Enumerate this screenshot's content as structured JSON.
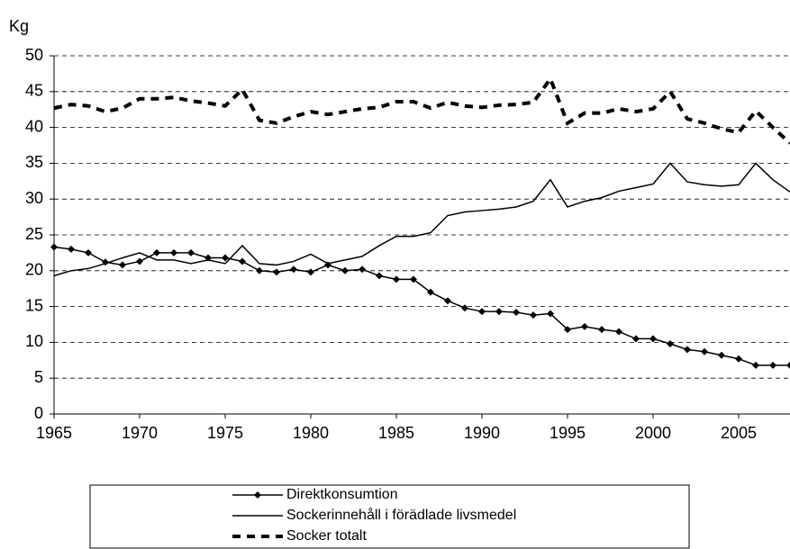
{
  "chart_data": {
    "type": "line",
    "ylabel": "Kg",
    "x": [
      1965,
      1966,
      1967,
      1968,
      1969,
      1970,
      1971,
      1972,
      1973,
      1974,
      1975,
      1976,
      1977,
      1978,
      1979,
      1980,
      1981,
      1982,
      1983,
      1984,
      1985,
      1986,
      1987,
      1988,
      1989,
      1990,
      1991,
      1992,
      1993,
      1994,
      1995,
      1996,
      1997,
      1998,
      1999,
      2000,
      2001,
      2002,
      2003,
      2004,
      2005,
      2006,
      2007,
      2008
    ],
    "xlim": [
      1965,
      2008
    ],
    "xticks": [
      1965,
      1970,
      1975,
      1980,
      1985,
      1990,
      1995,
      2000,
      2005
    ],
    "ylim": [
      0,
      50
    ],
    "yticks": [
      0,
      5,
      10,
      15,
      20,
      25,
      30,
      35,
      40,
      45,
      50
    ],
    "grid": true,
    "legend": "bottom",
    "series": [
      {
        "name": "Direktkonsumtion",
        "color": "#000000",
        "style": "marker",
        "values": [
          23.3,
          23.0,
          22.5,
          21.2,
          20.8,
          21.3,
          22.5,
          22.5,
          22.5,
          21.8,
          21.8,
          21.3,
          20.0,
          19.8,
          20.2,
          19.8,
          20.8,
          20.0,
          20.2,
          19.3,
          18.8,
          18.8,
          17.0,
          15.8,
          14.8,
          14.3,
          14.3,
          14.2,
          13.8,
          14.0,
          11.8,
          12.2,
          11.8,
          11.5,
          10.5,
          10.5,
          9.8,
          9.0,
          8.7,
          8.2,
          7.7,
          6.8,
          6.8,
          6.8
        ]
      },
      {
        "name": "Sockerinnehåll i förädlade livsmedel",
        "color": "#000000",
        "style": "solid",
        "values": [
          19.3,
          20.0,
          20.3,
          21.0,
          21.8,
          22.5,
          21.5,
          21.5,
          21.0,
          21.5,
          21.0,
          23.5,
          21.0,
          20.8,
          21.3,
          22.3,
          21.0,
          21.5,
          22.0,
          23.5,
          24.8,
          24.8,
          25.3,
          27.7,
          28.2,
          28.4,
          28.6,
          28.9,
          29.7,
          32.7,
          28.9,
          29.7,
          30.2,
          31.1,
          31.6,
          32.1,
          35.0,
          32.4,
          32.0,
          31.8,
          32.0,
          35.0,
          32.7,
          31.0
        ]
      },
      {
        "name": "Socker totalt",
        "color": "#000000",
        "style": "dashed",
        "values": [
          42.7,
          43.2,
          43.0,
          42.2,
          42.7,
          44.0,
          44.0,
          44.2,
          43.7,
          43.4,
          43.0,
          45.3,
          41.0,
          40.6,
          41.5,
          42.2,
          41.8,
          42.2,
          42.6,
          42.8,
          43.6,
          43.6,
          42.7,
          43.5,
          43.0,
          42.8,
          43.1,
          43.2,
          43.5,
          46.8,
          40.6,
          42.0,
          42.0,
          42.6,
          42.2,
          42.6,
          45.0,
          41.2,
          40.6,
          39.8,
          39.3,
          42.3,
          40.0,
          37.8
        ]
      }
    ]
  }
}
